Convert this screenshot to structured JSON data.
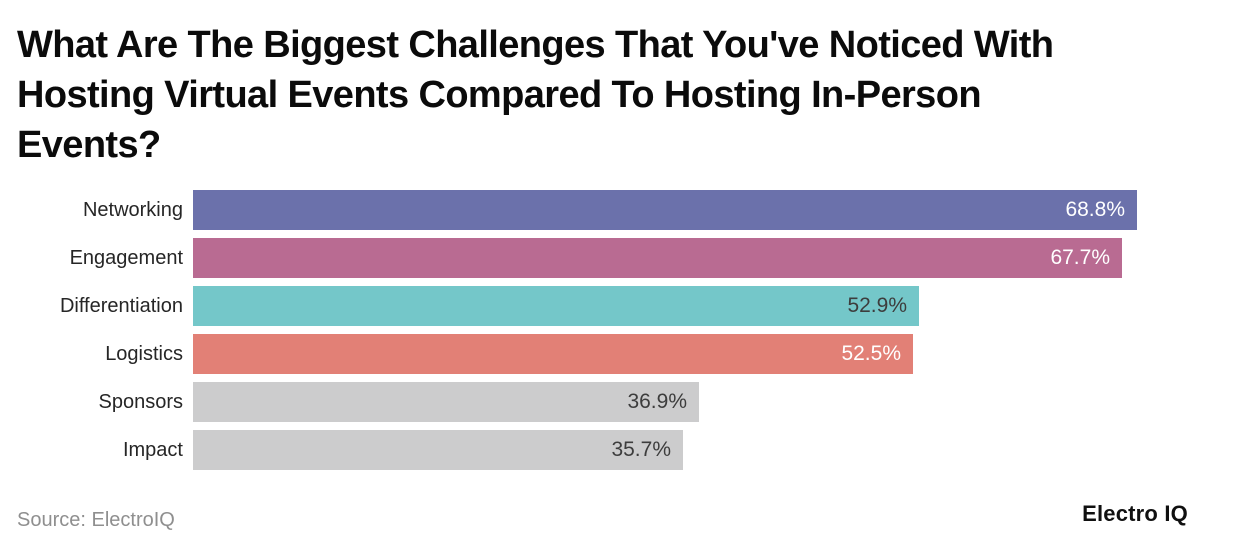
{
  "title": {
    "lines": [
      "What Are The Biggest Challenges That You've Noticed With",
      "Hosting Virtual Events Compared To Hosting In-Person",
      "Events?"
    ]
  },
  "footer": {
    "source": "Source: ElectroIQ",
    "brand": "Electro IQ"
  },
  "colors": {
    "background": "#ffffff",
    "title_text": "#0b0b0b",
    "category_text": "#262626",
    "source_text": "#8f8f8f",
    "brand_text": "#101010"
  },
  "chart_data": {
    "type": "bar",
    "orientation": "horizontal",
    "title": "What Are The Biggest Challenges That You've Noticed With Hosting Virtual Events Compared To Hosting In-Person Events?",
    "xlabel": "",
    "ylabel": "",
    "xlim": [
      0,
      76.5
    ],
    "grid": false,
    "legend": false,
    "categories": [
      "Networking",
      "Engagement",
      "Differentiation",
      "Logistics",
      "Sponsors",
      "Impact"
    ],
    "values": [
      68.8,
      67.7,
      52.9,
      52.5,
      36.9,
      35.7
    ],
    "value_labels": [
      "68.8%",
      "67.7%",
      "52.9%",
      "52.5%",
      "36.9%",
      "35.7%"
    ],
    "bar_colors": [
      "#6b71ab",
      "#b96b92",
      "#74c7c9",
      "#e28076",
      "#cccccd",
      "#cccccd"
    ],
    "value_label_colors": [
      "#ffffff",
      "#ffffff",
      "#3d3d3d",
      "#ffffff",
      "#3d3d3d",
      "#3d3d3d"
    ]
  }
}
